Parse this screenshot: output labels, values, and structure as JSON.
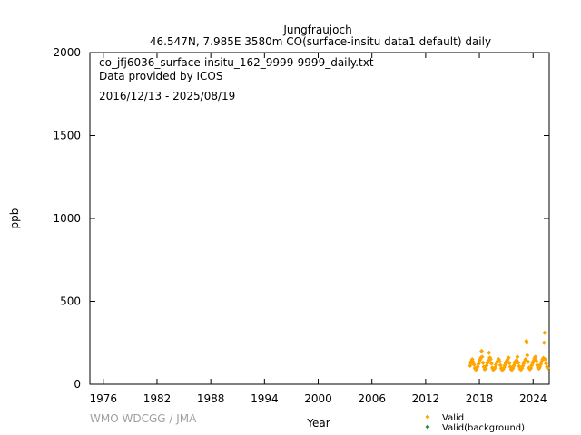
{
  "chart_data": {
    "type": "scatter",
    "title": "Jungfraujoch",
    "subtitle": "46.547N, 7.985E 3580m    CO(surface-insitu data1 default) daily",
    "xlabel": "Year",
    "ylabel": "ppb",
    "xlim": [
      1974.5,
      2025.8
    ],
    "ylim": [
      0,
      2000
    ],
    "x_ticks": [
      1976,
      1982,
      1988,
      1994,
      2000,
      2006,
      2012,
      2018,
      2024
    ],
    "y_ticks": [
      0,
      500,
      1000,
      1500,
      2000
    ],
    "annotations": [
      "co_jfj6036_surface-insitu_162_9999-9999_daily.txt",
      "Data provided by ICOS",
      "2016/12/13 - 2025/08/19"
    ],
    "credit": "WMO WDCGG / JMA",
    "legend_position": "bottom-right",
    "grid": false,
    "series": [
      {
        "name": "Valid",
        "color": "#FFA500",
        "marker": "diamond",
        "points": [
          [
            2016.96,
            112
          ],
          [
            2017.05,
            128
          ],
          [
            2017.12,
            140
          ],
          [
            2017.2,
            150
          ],
          [
            2017.3,
            135
          ],
          [
            2017.4,
            118
          ],
          [
            2017.5,
            98
          ],
          [
            2017.6,
            88
          ],
          [
            2017.7,
            92
          ],
          [
            2017.8,
            105
          ],
          [
            2017.9,
            122
          ],
          [
            2018.0,
            135
          ],
          [
            2018.08,
            148
          ],
          [
            2018.17,
            160
          ],
          [
            2018.25,
            200
          ],
          [
            2018.3,
            165
          ],
          [
            2018.4,
            130
          ],
          [
            2018.5,
            105
          ],
          [
            2018.6,
            90
          ],
          [
            2018.7,
            95
          ],
          [
            2018.8,
            112
          ],
          [
            2018.9,
            128
          ],
          [
            2019.0,
            142
          ],
          [
            2019.08,
            190
          ],
          [
            2019.17,
            160
          ],
          [
            2019.25,
            150
          ],
          [
            2019.35,
            125
          ],
          [
            2019.45,
            100
          ],
          [
            2019.55,
            88
          ],
          [
            2019.65,
            92
          ],
          [
            2019.75,
            100
          ],
          [
            2019.85,
            118
          ],
          [
            2019.95,
            132
          ],
          [
            2020.05,
            140
          ],
          [
            2020.15,
            150
          ],
          [
            2020.25,
            138
          ],
          [
            2020.35,
            115
          ],
          [
            2020.45,
            96
          ],
          [
            2020.55,
            86
          ],
          [
            2020.65,
            90
          ],
          [
            2020.75,
            102
          ],
          [
            2020.85,
            115
          ],
          [
            2020.95,
            128
          ],
          [
            2021.05,
            140
          ],
          [
            2021.15,
            148
          ],
          [
            2021.25,
            160
          ],
          [
            2021.35,
            128
          ],
          [
            2021.45,
            105
          ],
          [
            2021.55,
            90
          ],
          [
            2021.65,
            88
          ],
          [
            2021.75,
            98
          ],
          [
            2021.85,
            112
          ],
          [
            2021.95,
            126
          ],
          [
            2022.05,
            138
          ],
          [
            2022.15,
            145
          ],
          [
            2022.25,
            165
          ],
          [
            2022.35,
            130
          ],
          [
            2022.45,
            108
          ],
          [
            2022.55,
            92
          ],
          [
            2022.65,
            88
          ],
          [
            2022.75,
            96
          ],
          [
            2022.85,
            110
          ],
          [
            2022.95,
            125
          ],
          [
            2023.05,
            138
          ],
          [
            2023.15,
            150
          ],
          [
            2023.25,
            260
          ],
          [
            2023.3,
            250
          ],
          [
            2023.35,
            175
          ],
          [
            2023.45,
            135
          ],
          [
            2023.55,
            100
          ],
          [
            2023.65,
            90
          ],
          [
            2023.75,
            98
          ],
          [
            2023.85,
            115
          ],
          [
            2023.95,
            128
          ],
          [
            2024.05,
            140
          ],
          [
            2024.15,
            155
          ],
          [
            2024.25,
            165
          ],
          [
            2024.35,
            140
          ],
          [
            2024.45,
            115
          ],
          [
            2024.55,
            100
          ],
          [
            2024.65,
            95
          ],
          [
            2024.75,
            105
          ],
          [
            2024.85,
            120
          ],
          [
            2024.95,
            135
          ],
          [
            2025.05,
            148
          ],
          [
            2025.15,
            158
          ],
          [
            2025.22,
            250
          ],
          [
            2025.28,
            310
          ],
          [
            2025.35,
            150
          ],
          [
            2025.45,
            125
          ],
          [
            2025.55,
            105
          ],
          [
            2025.63,
            98
          ]
        ]
      },
      {
        "name": "Valid(background)",
        "color": "#2E8B57",
        "marker": "diamond",
        "points": []
      }
    ]
  }
}
